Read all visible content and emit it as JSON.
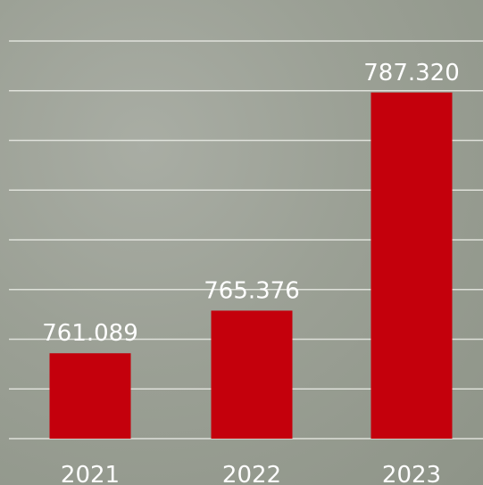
{
  "chart_data": {
    "type": "bar",
    "categories": [
      "2021",
      "2022",
      "2023"
    ],
    "values": [
      761.089,
      765.376,
      787.32
    ],
    "value_labels": [
      "761.089",
      "765.376",
      "787.320"
    ],
    "ylim": [
      752.5,
      792.5
    ],
    "grid": true,
    "legend": "none",
    "colors": {
      "bar": "#c4000c",
      "grid": "#e6e8e2",
      "text": "#ffffff"
    }
  }
}
